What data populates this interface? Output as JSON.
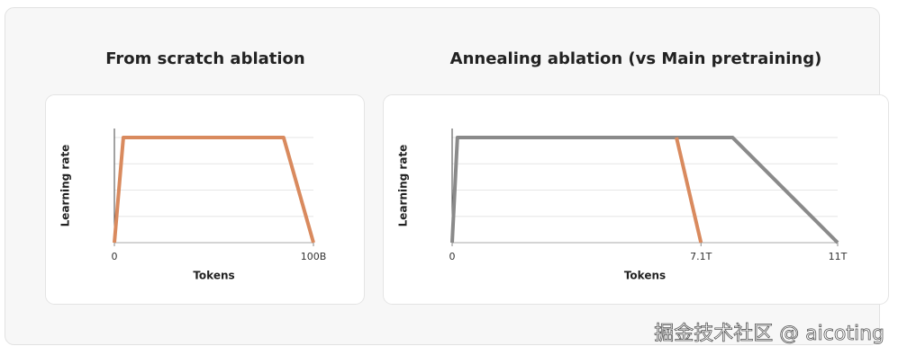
{
  "chart_data": [
    {
      "type": "line",
      "title": "From scratch ablation",
      "ylabel": "Learning rate",
      "xlabel": "Tokens",
      "xlim": [
        0,
        100
      ],
      "xticks": [
        0,
        {
          "value": 100,
          "label": "100B"
        }
      ],
      "ylim": [
        0,
        4.34
      ],
      "yticks": [
        1,
        2,
        3,
        4
      ],
      "grid": true,
      "series": [
        {
          "color": "#d98a5e",
          "x": [
            0,
            4.5,
            85,
            100
          ],
          "values": [
            0,
            4,
            4,
            0
          ]
        }
      ]
    },
    {
      "type": "line",
      "title": "Annealing ablation (vs Main pretraining)",
      "ylabel": "Learning rate",
      "xlabel": "Tokens",
      "xlim": [
        0,
        11
      ],
      "xticks": [
        0,
        {
          "value": 7.1,
          "label": "7.1T"
        },
        {
          "value": 11,
          "label": "11T"
        }
      ],
      "ylim": [
        0,
        4.34
      ],
      "yticks": [
        1,
        2,
        3,
        4
      ],
      "grid": true,
      "series": [
        {
          "color": "#8a8a8a",
          "x": [
            0,
            0.15,
            8,
            11
          ],
          "values": [
            0,
            4,
            4,
            0
          ]
        },
        {
          "color": "#d98a5e",
          "x": [
            6.4,
            7.1
          ],
          "values": [
            4,
            0
          ]
        }
      ]
    }
  ],
  "watermark": "掘金技术社区 @ aicoting"
}
